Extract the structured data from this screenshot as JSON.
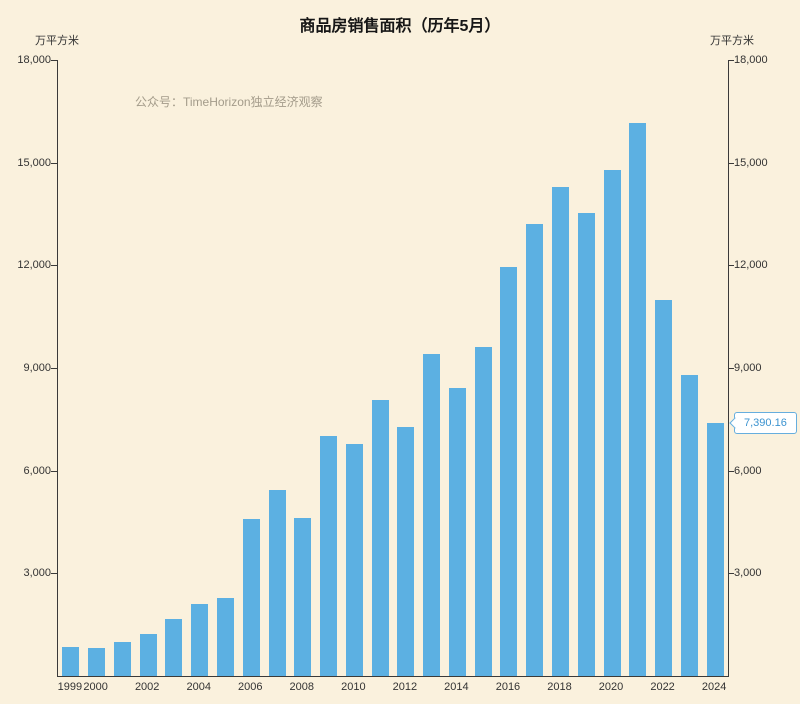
{
  "title": "商品房销售面积（历年5月）",
  "watermark": "公众号：TimeHorizon独立经济观察",
  "axes": {
    "unit_left": "万平方米",
    "unit_right": "万平方米"
  },
  "callout": {
    "value": "7,390.16"
  },
  "colors": {
    "background": "#faf1dd",
    "bar": "#5cb0e2",
    "axis": "#3a3a3a",
    "text": "#333333",
    "watermark": "#a39b8a",
    "callout_border": "#66aede",
    "callout_text": "#3b93d0"
  },
  "chart_data": {
    "type": "bar",
    "title": "商品房销售面积（历年5月）",
    "xlabel": "",
    "ylabel": "万平方米",
    "ylim": [
      0,
      18000
    ],
    "yticks": [
      3000,
      6000,
      9000,
      12000,
      15000,
      18000
    ],
    "ytick_labels": [
      "3,000",
      "6,000",
      "9,000",
      "12,000",
      "15,000",
      "18,000"
    ],
    "categories": [
      1999,
      2000,
      2001,
      2002,
      2003,
      2004,
      2005,
      2006,
      2007,
      2008,
      2009,
      2010,
      2011,
      2012,
      2013,
      2014,
      2015,
      2016,
      2017,
      2018,
      2019,
      2020,
      2021,
      2022,
      2023,
      2024
    ],
    "values": [
      850,
      820,
      1000,
      1230,
      1670,
      2100,
      2280,
      4590,
      5430,
      4620,
      7010,
      6780,
      8060,
      7280,
      9400,
      8420,
      9610,
      11950,
      13210,
      14290,
      13530,
      14790,
      16160,
      11000,
      8800,
      7390.16
    ],
    "x_labels_shown": [
      "1999",
      "2000",
      "2002",
      "2004",
      "2006",
      "2008",
      "2010",
      "2012",
      "2014",
      "2016",
      "2018",
      "2020",
      "2022",
      "2024"
    ],
    "grid": false,
    "legend": false,
    "data_label": {
      "year": 2024,
      "text": "7,390.16"
    }
  }
}
